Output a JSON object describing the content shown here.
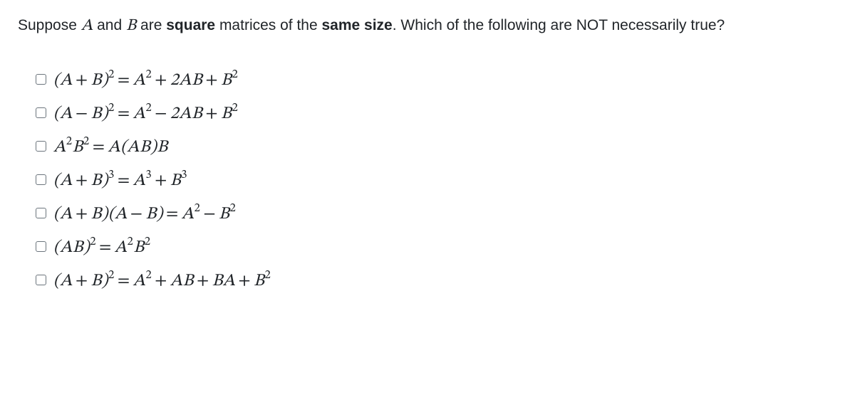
{
  "question": {
    "prefix": "Suppose ",
    "var_a": "A",
    "mid1": " and ",
    "var_b": "B",
    "mid2": " are ",
    "bold1": "square",
    "mid3": " matrices of the ",
    "bold2": "same size",
    "suffix": ". Which of the following are NOT necessarily true?"
  },
  "styling": {
    "text_color": "#212529",
    "background": "#ffffff",
    "question_fontsize": 21,
    "formula_fontsize": 24,
    "checkbox_border": "#6c757d",
    "checkbox_size": 15,
    "font_family_body": "Segoe UI, Helvetica Neue, Arial, sans-serif",
    "font_family_math": "Cambria Math, STIX Two Math, Times New Roman, serif"
  },
  "options": {
    "count": 7,
    "formulas_plain": [
      "(A + B)^2 = A^2 + 2AB + B^2",
      "(A − B)^2 = A^2 − 2AB + B^2",
      "A^2 B^2 = A(AB)B",
      "(A + B)^3 = A^3 + B^3",
      "(A + B)(A − B) = A^2 − B^2",
      "(AB)^2 = A^2 B^2",
      "(A + B)^2 = A^2 + AB + BA + B^2"
    ],
    "checked": [
      false,
      false,
      false,
      false,
      false,
      false,
      false
    ]
  }
}
